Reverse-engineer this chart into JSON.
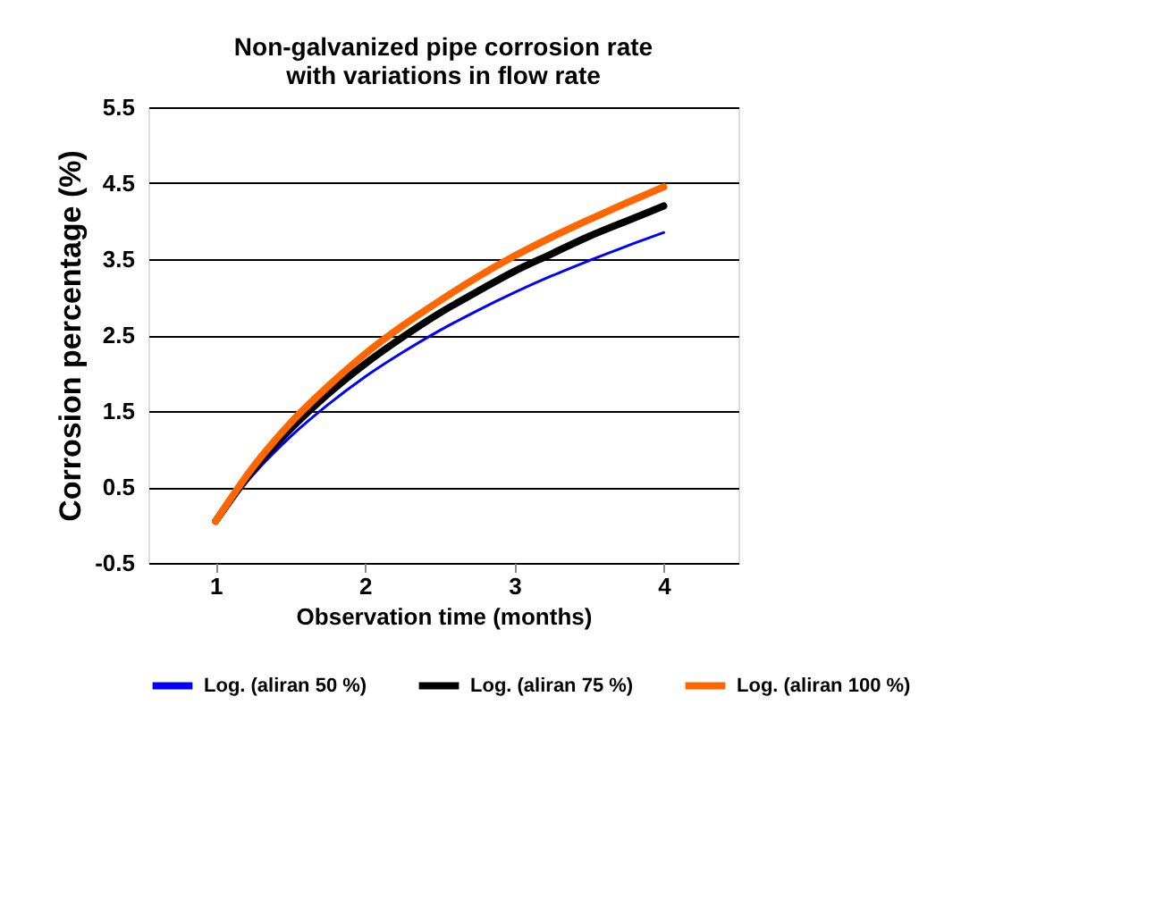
{
  "chart_data": {
    "type": "line",
    "title": "Non-galvanized pipe corrosion rate with variations in flow rate",
    "xlabel": "Observation time (months)",
    "ylabel": "Corrosion percentage (%)",
    "x": [
      1,
      1.25,
      1.5,
      1.75,
      2,
      2.25,
      2.5,
      2.75,
      3,
      3.25,
      3.5,
      3.75,
      4
    ],
    "series": [
      {
        "name": "Log. (aliran 50 %)",
        "color": "#0000ff",
        "values": [
          0.05,
          0.66,
          1.16,
          1.58,
          1.95,
          2.27,
          2.56,
          2.82,
          3.06,
          3.28,
          3.48,
          3.67,
          3.85
        ]
      },
      {
        "name": "Log. (aliran 75 %)",
        "color": "#000000",
        "values": [
          0.05,
          0.72,
          1.26,
          1.72,
          2.12,
          2.47,
          2.79,
          3.07,
          3.34,
          3.57,
          3.8,
          4.0,
          4.2
        ]
      },
      {
        "name": "Log. (aliran 100 %)",
        "color": "#ff6600",
        "values": [
          0.05,
          0.76,
          1.34,
          1.82,
          2.25,
          2.62,
          2.95,
          3.26,
          3.54,
          3.79,
          4.02,
          4.24,
          4.45
        ]
      }
    ],
    "xlim": [
      0.55,
      4.5
    ],
    "xticks": [
      1,
      2,
      3,
      4
    ],
    "ylim": [
      -0.5,
      5.5
    ],
    "yticks": [
      -0.5,
      0.5,
      1.5,
      2.5,
      3.5,
      4.5,
      5.5
    ],
    "grid": "y",
    "legend": "bottom",
    "marker": "none",
    "line_style": "solid"
  }
}
